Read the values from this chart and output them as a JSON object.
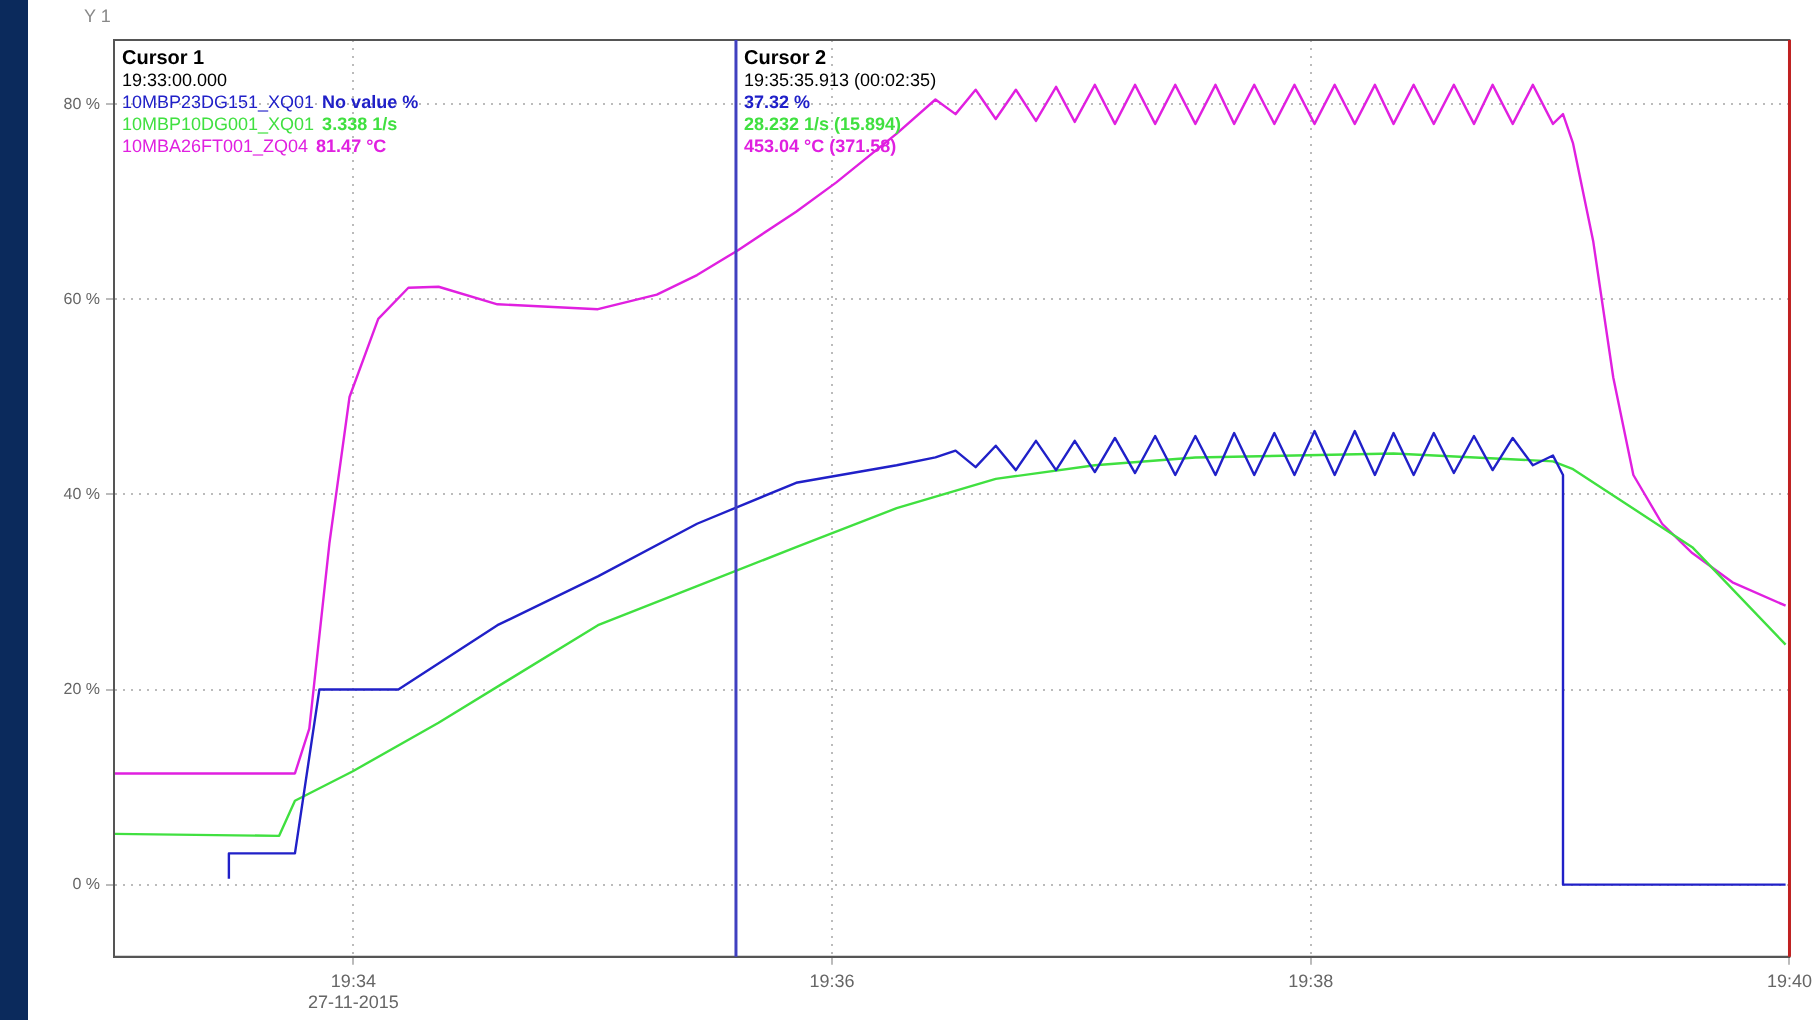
{
  "chart_data": {
    "type": "line",
    "ylabel": "Y 1",
    "xlim": [
      19.55,
      19.66667
    ],
    "xticks": [
      {
        "value": 19.56667,
        "label": "19:34\n27-11-2015"
      },
      {
        "value": 19.6,
        "label": "19:36"
      },
      {
        "value": 19.63333,
        "label": "19:38"
      },
      {
        "value": 19.66667,
        "label": "19:40"
      }
    ],
    "ylim": [
      -7.4,
      86.6
    ],
    "yticks": [
      {
        "value": 0,
        "label": "0 %"
      },
      {
        "value": 20,
        "label": "20 %"
      },
      {
        "value": 40,
        "label": "40 %"
      },
      {
        "value": 60,
        "label": "60 %"
      },
      {
        "value": 80,
        "label": "80 %"
      }
    ],
    "grid": true,
    "legend": false,
    "series": [
      {
        "name": "10MBP23DG151_XQ01",
        "color": "#2020c8",
        "x": [
          19.558,
          19.558,
          19.5626,
          19.5643,
          19.5698,
          19.5767,
          19.5837,
          19.5906,
          19.5975,
          19.6045,
          19.6072,
          19.6086,
          19.61,
          19.6114,
          19.6128,
          19.6142,
          19.6156,
          19.6169,
          19.6183,
          19.6197,
          19.6211,
          19.6225,
          19.6239,
          19.6253,
          19.6267,
          19.628,
          19.6294,
          19.6308,
          19.6322,
          19.6336,
          19.635,
          19.6364,
          19.6378,
          19.6391,
          19.6405,
          19.6419,
          19.6433,
          19.6447,
          19.646,
          19.6474,
          19.6488,
          19.6502,
          19.6509,
          19.6509,
          19.6664
        ],
        "values": [
          0.6,
          3.2,
          3.2,
          20,
          20,
          26.6,
          31.6,
          37,
          41.2,
          43,
          43.8,
          44.5,
          42.8,
          45,
          42.5,
          45.5,
          42.5,
          45.5,
          42.3,
          45.8,
          42.2,
          46,
          42,
          46,
          42,
          46.3,
          42,
          46.3,
          42,
          46.5,
          42,
          46.5,
          42,
          46.3,
          42,
          46.3,
          42.2,
          46,
          42.5,
          45.8,
          43,
          44,
          42,
          0,
          0
        ]
      },
      {
        "name": "10MBP10DG001_XQ01",
        "color": "#40e040",
        "x": [
          19.55,
          19.5615,
          19.5626,
          19.5666,
          19.5726,
          19.5837,
          19.5906,
          19.5975,
          19.6045,
          19.6114,
          19.6183,
          19.6253,
          19.6391,
          19.6502,
          19.6516,
          19.6599,
          19.6664
        ],
        "values": [
          5.2,
          5,
          8.6,
          11.6,
          16.6,
          26.6,
          30.6,
          34.6,
          38.6,
          41.6,
          43,
          43.8,
          44.2,
          43.4,
          42.6,
          34.6,
          24.6
        ]
      },
      {
        "name": "10MBA26FT001_ZQ04",
        "color": "#e020e0",
        "x": [
          19.55,
          19.5626,
          19.5636,
          19.565,
          19.5664,
          19.5684,
          19.5705,
          19.5726,
          19.5767,
          19.5837,
          19.5878,
          19.5906,
          19.5934,
          19.5975,
          19.6003,
          19.6045,
          19.6072,
          19.6086,
          19.61,
          19.6114,
          19.6128,
          19.6142,
          19.6156,
          19.6169,
          19.6183,
          19.6197,
          19.6211,
          19.6225,
          19.6239,
          19.6253,
          19.6267,
          19.628,
          19.6294,
          19.6308,
          19.6322,
          19.6336,
          19.635,
          19.6364,
          19.6378,
          19.6391,
          19.6405,
          19.6419,
          19.6433,
          19.6447,
          19.646,
          19.6474,
          19.6488,
          19.6502,
          19.6509,
          19.6516,
          19.653,
          19.6544,
          19.6558,
          19.6578,
          19.6599,
          19.6627,
          19.6664
        ],
        "values": [
          11.4,
          11.4,
          16,
          35,
          50,
          58,
          61.2,
          61.3,
          59.5,
          59,
          60.5,
          62.5,
          65,
          69,
          72,
          77,
          80.5,
          79,
          81.5,
          78.5,
          81.5,
          78.3,
          81.8,
          78.2,
          82,
          78,
          82,
          78,
          82,
          78,
          82,
          78,
          82,
          78,
          82,
          78,
          82,
          78,
          82,
          78,
          82,
          78,
          82,
          78,
          82,
          78,
          82,
          78,
          79,
          76,
          66,
          52,
          42,
          37,
          34,
          31,
          28.6
        ]
      }
    ],
    "ref_lines": [
      {
        "axis": "x",
        "value": 19.59331,
        "label": "Cursor 2",
        "color": "#4040c0"
      },
      {
        "axis": "x",
        "value": 19.66667,
        "color": "#c02020"
      }
    ],
    "annotations": [
      "Cursor 1",
      "19:33:00.000",
      "No value %",
      "3.338 1/s",
      "81.47 °C",
      "19:35:35.913 (00:02:35)",
      "37.32 %",
      "28.232 1/s (15.894)",
      "453.04 °C (371.58)"
    ]
  }
}
